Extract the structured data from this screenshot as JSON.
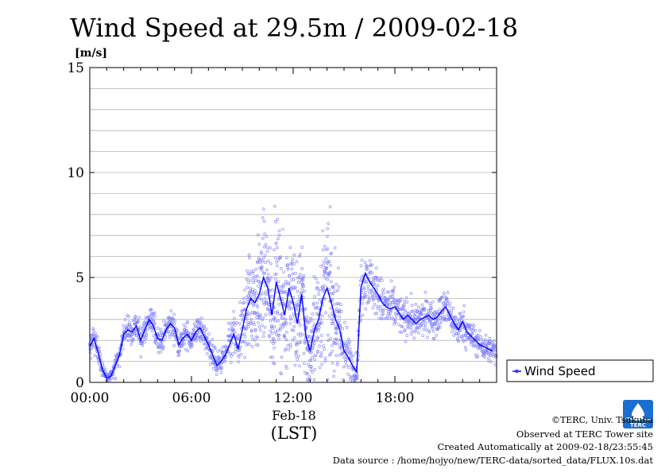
{
  "chart_data": {
    "type": "scatter",
    "title": "Wind Speed at 29.5m / 2009-02-18",
    "ylabel": "[m/s]",
    "ylim": [
      0,
      15
    ],
    "xlim_hours": [
      0,
      24
    ],
    "x_ticks": [
      {
        "hour": 0,
        "label": "00:00"
      },
      {
        "hour": 6,
        "label": "06:00"
      },
      {
        "hour": 12,
        "label": "12:00"
      },
      {
        "hour": 18,
        "label": "18:00"
      }
    ],
    "y_ticks": [
      0,
      5,
      10,
      15
    ],
    "date_label": "Feb-18",
    "time_zone_label": "(LST)",
    "grid": true,
    "legend_position": "right",
    "series": [
      {
        "name": "Wind Speed",
        "color": "#0000ff",
        "mean_x_hours": [
          0,
          0.25,
          0.5,
          0.75,
          1,
          1.25,
          1.5,
          1.75,
          2,
          2.25,
          2.5,
          2.75,
          3,
          3.25,
          3.5,
          3.75,
          4,
          4.25,
          4.5,
          4.75,
          5,
          5.25,
          5.5,
          5.75,
          6,
          6.25,
          6.5,
          6.75,
          7,
          7.25,
          7.5,
          7.75,
          8,
          8.25,
          8.5,
          8.75,
          9,
          9.25,
          9.5,
          9.75,
          10,
          10.25,
          10.5,
          10.75,
          11,
          11.25,
          11.5,
          11.75,
          12,
          12.25,
          12.5,
          12.75,
          13,
          13.25,
          13.5,
          13.75,
          14,
          14.25,
          14.5,
          14.75,
          15,
          15.25,
          15.5,
          15.75,
          16,
          16.25,
          16.5,
          16.75,
          17,
          17.25,
          17.5,
          17.75,
          18,
          18.25,
          18.5,
          18.75,
          19,
          19.25,
          19.5,
          19.75,
          20,
          20.25,
          20.5,
          20.75,
          21,
          21.25,
          21.5,
          21.75,
          22,
          22.25,
          22.5,
          22.75,
          23,
          23.25,
          23.5,
          23.75
        ],
        "mean_values": [
          1.7,
          2.1,
          1.4,
          0.6,
          0.2,
          0.3,
          0.8,
          1.3,
          2.3,
          2.5,
          2.4,
          2.7,
          2.0,
          2.5,
          3.0,
          2.7,
          2.1,
          2.0,
          2.5,
          2.8,
          2.6,
          1.8,
          2.1,
          2.3,
          2.0,
          2.4,
          2.6,
          2.2,
          1.8,
          1.3,
          0.8,
          1.0,
          1.3,
          1.8,
          2.3,
          1.6,
          2.5,
          3.5,
          4.0,
          3.8,
          4.2,
          5.0,
          4.5,
          3.2,
          4.8,
          4.0,
          3.2,
          4.5,
          3.8,
          2.8,
          4.2,
          2.2,
          1.5,
          2.5,
          3.0,
          4.0,
          4.5,
          3.8,
          3.0,
          2.5,
          1.5,
          1.2,
          0.8,
          0.5,
          4.5,
          5.2,
          4.8,
          4.5,
          4.2,
          3.8,
          3.6,
          3.5,
          3.6,
          3.3,
          3.0,
          3.2,
          3.0,
          2.8,
          3.0,
          3.1,
          3.2,
          3.0,
          3.1,
          3.4,
          3.6,
          3.2,
          2.8,
          2.5,
          2.9,
          2.4,
          2.2,
          2.0,
          1.8,
          1.7,
          1.6,
          1.5
        ],
        "sample_spread": [
          0.6,
          0.5,
          0.5,
          0.3,
          0.2,
          0.2,
          0.4,
          0.5,
          0.5,
          0.5,
          0.5,
          0.6,
          0.6,
          0.6,
          0.6,
          0.6,
          0.5,
          0.5,
          0.5,
          0.6,
          0.5,
          0.5,
          0.5,
          0.5,
          0.5,
          0.5,
          0.5,
          0.5,
          0.5,
          0.5,
          0.5,
          0.5,
          0.6,
          0.8,
          1.0,
          1.0,
          1.2,
          1.8,
          2.2,
          2.0,
          2.2,
          2.4,
          2.4,
          2.2,
          2.4,
          2.4,
          2.2,
          2.4,
          2.4,
          2.2,
          2.4,
          2.0,
          1.6,
          2.0,
          2.4,
          2.6,
          2.8,
          2.4,
          2.0,
          1.8,
          1.2,
          1.0,
          0.8,
          0.6,
          1.2,
          1.2,
          1.1,
          1.0,
          1.0,
          0.9,
          0.9,
          0.9,
          0.9,
          0.8,
          0.7,
          0.8,
          0.7,
          0.7,
          0.7,
          0.7,
          0.7,
          0.7,
          0.7,
          0.7,
          0.8,
          0.7,
          0.6,
          0.6,
          0.8,
          0.6,
          0.6,
          0.6,
          0.5,
          0.5,
          0.5,
          0.5
        ]
      }
    ]
  },
  "logo": {
    "text": "TERC",
    "color": "#1a6fd0"
  },
  "credits": [
    "©TERC, Univ. Tsukuba",
    "Observed at TERC Tower site",
    "Created Automatically at 2009-02-18/23:55:45",
    "Data source : /home/hojyo/new/TERC-data/sorted_data/FLUX.10s.dat"
  ]
}
